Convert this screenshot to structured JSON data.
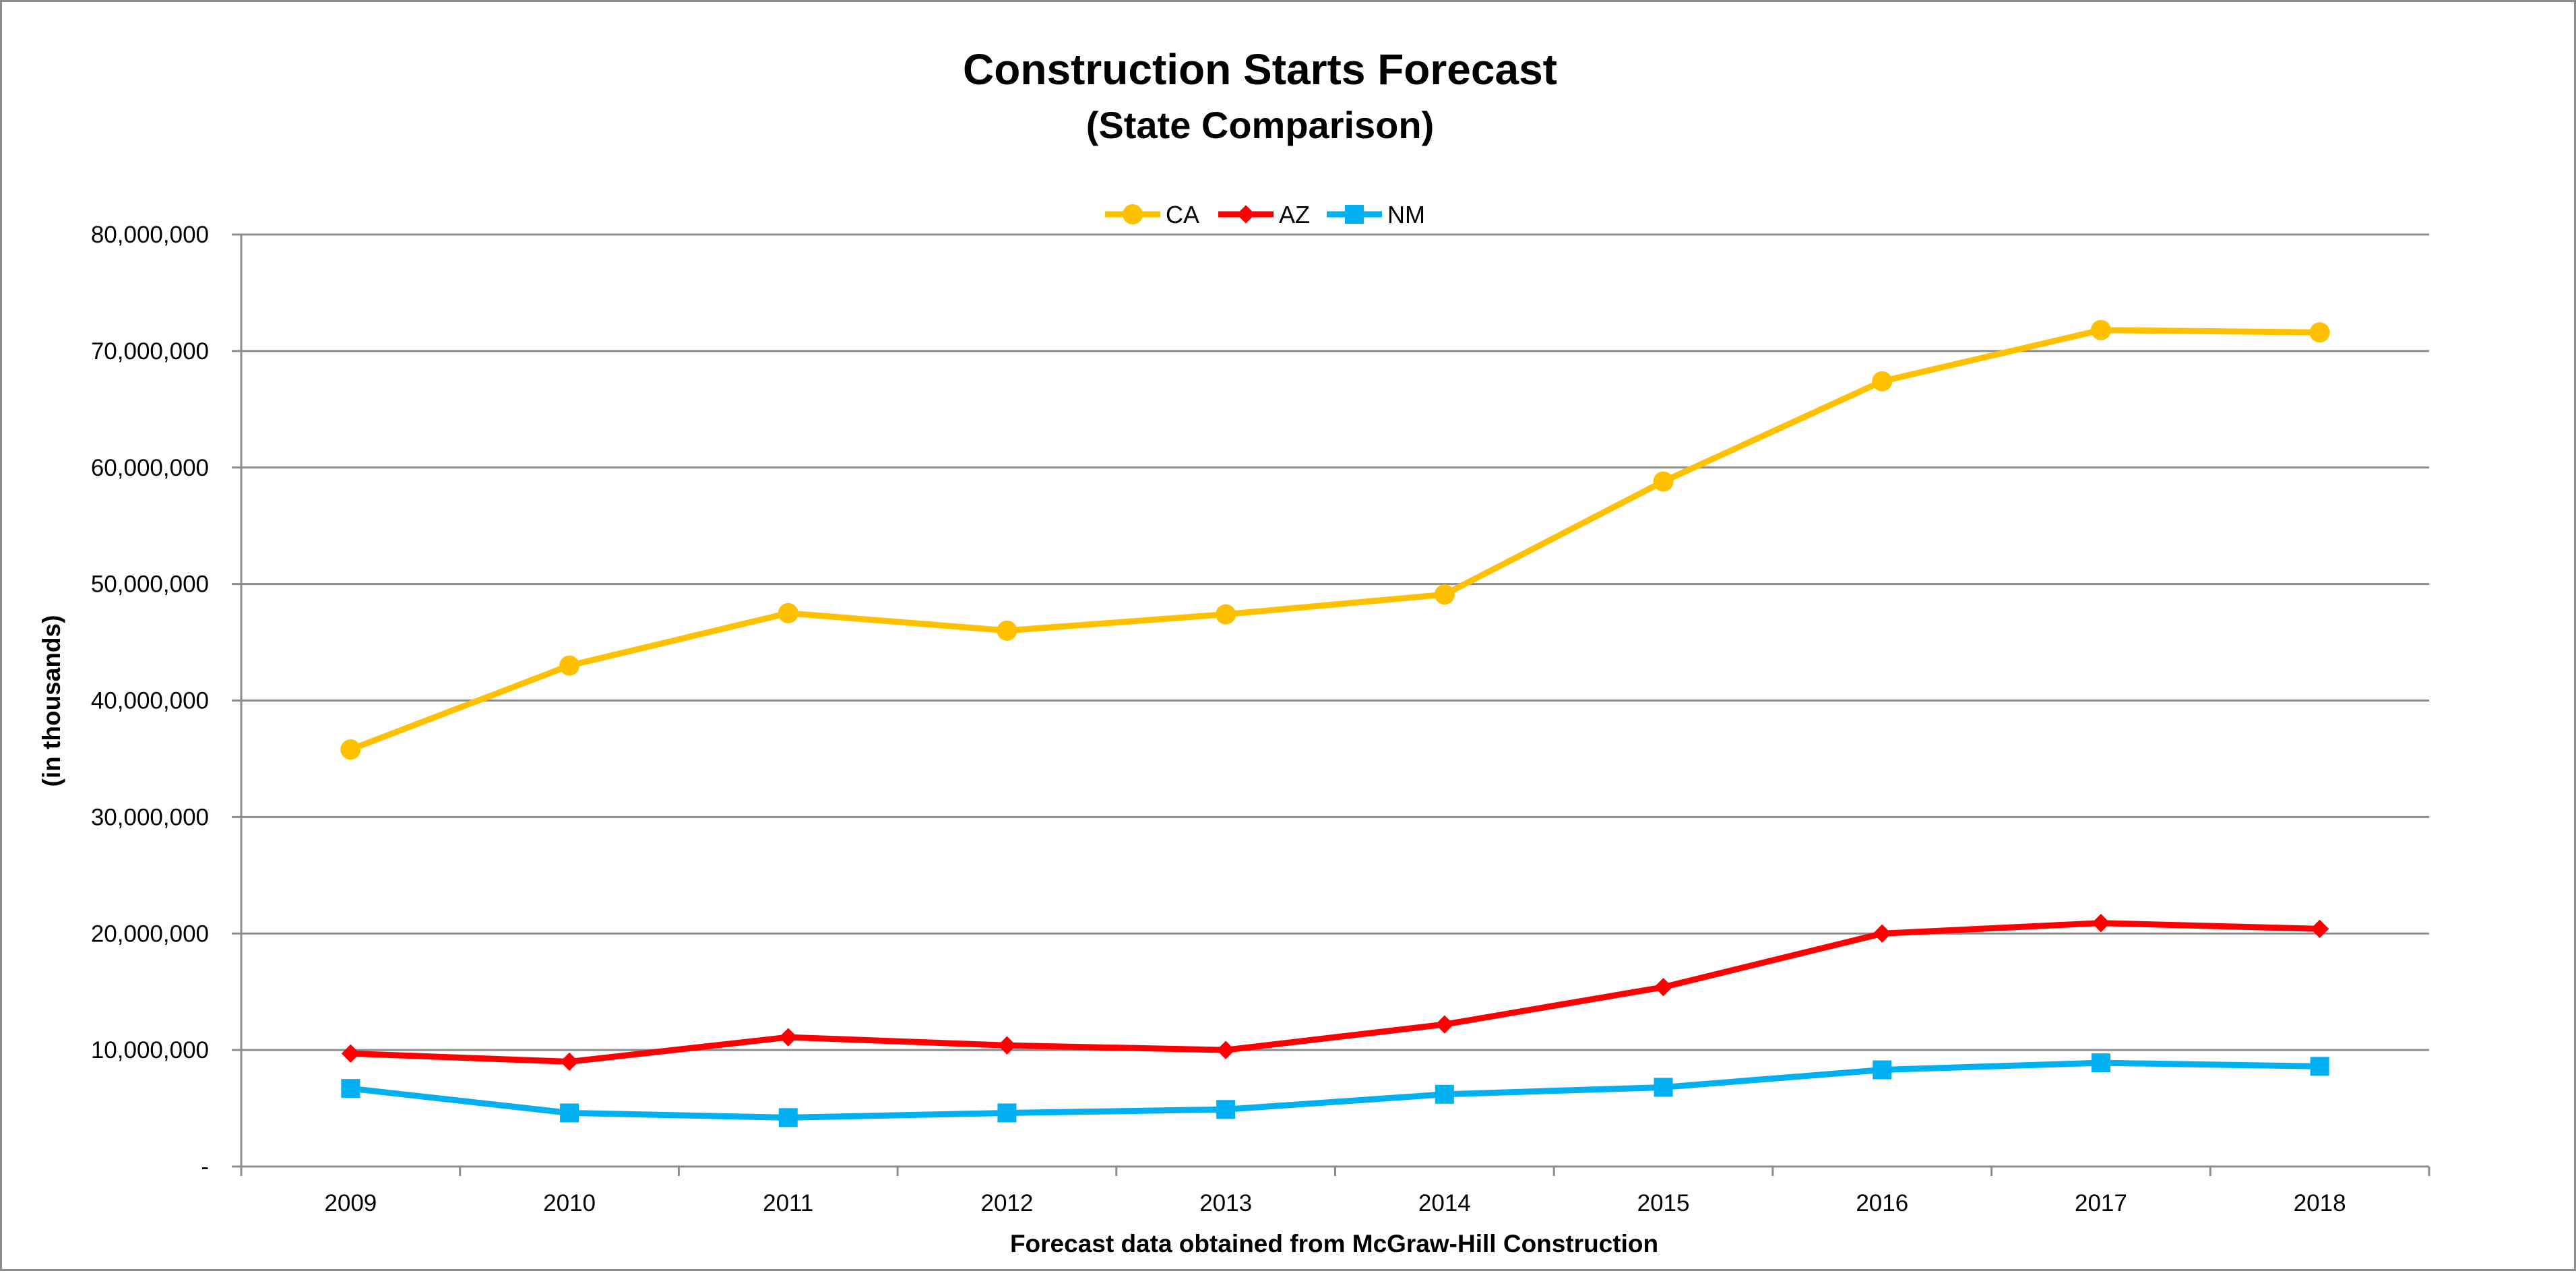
{
  "chart_data": {
    "type": "line",
    "title": "Construction Starts Forecast",
    "subtitle": "(State Comparison)",
    "xlabel": "Forecast data obtained from McGraw-Hill Construction",
    "ylabel": "(in thousands)",
    "categories": [
      "2009",
      "2010",
      "2011",
      "2012",
      "2013",
      "2014",
      "2015",
      "2016",
      "2017",
      "2018"
    ],
    "ylim": [
      0,
      80000000
    ],
    "y_ticks": [
      {
        "value": 0,
        "label": "-"
      },
      {
        "value": 10000000,
        "label": "10,000,000"
      },
      {
        "value": 20000000,
        "label": "20,000,000"
      },
      {
        "value": 30000000,
        "label": "30,000,000"
      },
      {
        "value": 40000000,
        "label": "40,000,000"
      },
      {
        "value": 50000000,
        "label": "50,000,000"
      },
      {
        "value": 60000000,
        "label": "60,000,000"
      },
      {
        "value": 70000000,
        "label": "70,000,000"
      },
      {
        "value": 80000000,
        "label": "80,000,000"
      }
    ],
    "grid": true,
    "legend_position": "top-center",
    "series": [
      {
        "name": "CA",
        "color": "#FFC000",
        "marker": "circle",
        "values": [
          35800000,
          43000000,
          47500000,
          46000000,
          47400000,
          49100000,
          58800000,
          67400000,
          71800000,
          71600000
        ]
      },
      {
        "name": "AZ",
        "color": "#FF0000",
        "marker": "diamond",
        "values": [
          9700000,
          9000000,
          11100000,
          10400000,
          10000000,
          12200000,
          15400000,
          20000000,
          20900000,
          20400000
        ]
      },
      {
        "name": "NM",
        "color": "#00B0F0",
        "marker": "square",
        "values": [
          6700000,
          4600000,
          4200000,
          4600000,
          4900000,
          6200000,
          6800000,
          8300000,
          8900000,
          8600000
        ]
      }
    ]
  }
}
